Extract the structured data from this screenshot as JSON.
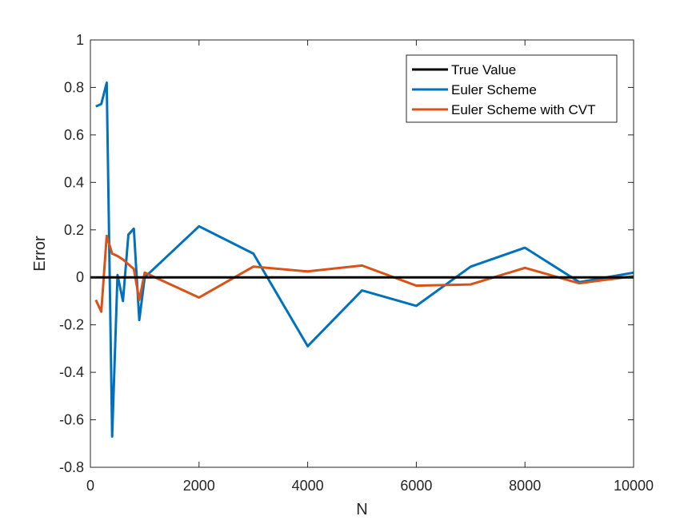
{
  "chart_data": {
    "type": "line",
    "xlabel": "N",
    "ylabel": "Error",
    "xlim": [
      0,
      10000
    ],
    "ylim": [
      -0.8,
      1
    ],
    "xticks": [
      0,
      2000,
      4000,
      6000,
      8000,
      10000
    ],
    "xtick_labels": [
      "0",
      "2000",
      "4000",
      "6000",
      "8000",
      "10000"
    ],
    "yticks": [
      -0.8,
      -0.6,
      -0.4,
      -0.2,
      0,
      0.2,
      0.4,
      0.6,
      0.8,
      1
    ],
    "ytick_labels": [
      "-0.8",
      "-0.6",
      "-0.4",
      "-0.2",
      "0",
      "0.2",
      "0.4",
      "0.6",
      "0.8",
      "1"
    ],
    "grid": false,
    "legend_position": "top-right",
    "series": [
      {
        "name": "True Value",
        "color": "#000000",
        "x": [
          0,
          10000
        ],
        "y": [
          0,
          0
        ]
      },
      {
        "name": "Euler Scheme",
        "color": "#0072BD",
        "x": [
          100,
          200,
          300,
          400,
          500,
          600,
          700,
          800,
          900,
          1000,
          2000,
          3000,
          4000,
          5000,
          6000,
          7000,
          8000,
          9000,
          10000
        ],
        "y": [
          0.72,
          0.73,
          0.82,
          -0.67,
          0.01,
          -0.1,
          0.18,
          0.205,
          -0.18,
          0.0,
          0.215,
          0.1,
          -0.29,
          -0.055,
          -0.12,
          0.045,
          0.125,
          -0.02,
          0.02
        ]
      },
      {
        "name": "Euler Scheme with CVT",
        "color": "#D95319",
        "x": [
          100,
          200,
          300,
          400,
          500,
          600,
          700,
          800,
          900,
          1000,
          2000,
          3000,
          4000,
          5000,
          6000,
          7000,
          8000,
          9000,
          10000
        ],
        "y": [
          -0.095,
          -0.145,
          0.175,
          0.1,
          0.09,
          0.075,
          0.055,
          0.035,
          -0.095,
          0.02,
          -0.085,
          0.045,
          0.025,
          0.05,
          -0.035,
          -0.03,
          0.04,
          -0.025,
          0.005
        ]
      }
    ]
  }
}
